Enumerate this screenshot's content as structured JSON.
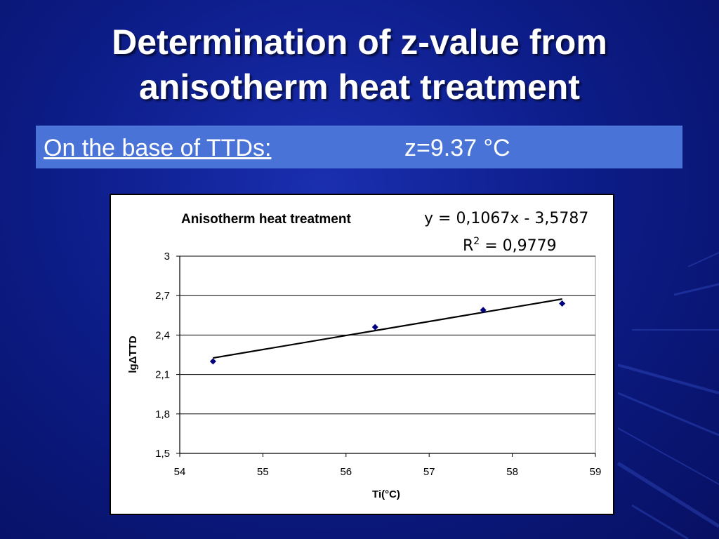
{
  "slide": {
    "title_line1": "Determination of z-value from",
    "title_line2": "anisotherm heat treatment",
    "subtitle_label": "On the base of TTDs:",
    "subtitle_value": "z=9.37 °C",
    "colors": {
      "background": "#0d1d8a",
      "subtitle_bar": "#4a73d8",
      "text": "#ffffff"
    }
  },
  "chart_data": {
    "type": "scatter",
    "title": "Anisotherm heat treatment",
    "equation": "y = 0,1067x - 3,5787",
    "r2_label": "R",
    "r2_sup": "2",
    "r2_value": " = 0,9779",
    "xlabel": "Ti(°C)",
    "ylabel": "lgΔTTD",
    "xlim": [
      54,
      59
    ],
    "ylim": [
      1.5,
      3.0
    ],
    "x_ticks": [
      "54",
      "55",
      "56",
      "57",
      "58",
      "59"
    ],
    "y_ticks": [
      "1,5",
      "1,8",
      "2,1",
      "2,4",
      "2,7",
      "3"
    ],
    "grid": "horizontal",
    "series": [
      {
        "points": [
          {
            "x": 54.4,
            "y": 2.2
          },
          {
            "x": 56.35,
            "y": 2.46
          },
          {
            "x": 57.65,
            "y": 2.59
          },
          {
            "x": 58.6,
            "y": 2.64
          }
        ],
        "color": "#00007f"
      }
    ],
    "trendline": {
      "slope": 0.1067,
      "intercept": -3.5787,
      "x_start": 54.4,
      "x_end": 58.6,
      "color": "#000000"
    }
  }
}
